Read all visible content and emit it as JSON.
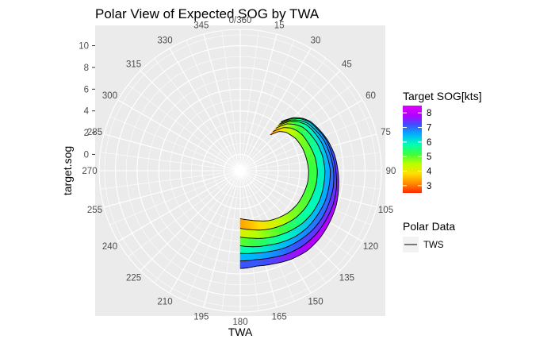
{
  "chart_data": {
    "type": "polar-area",
    "title": "Polar View of Expected SOG by TWA",
    "xlabel": "TWA",
    "ylabel": "target.sog",
    "theta_ticks": [
      "0/360",
      "15",
      "30",
      "45",
      "60",
      "75",
      "90",
      "105",
      "120",
      "135",
      "150",
      "165",
      "180",
      "195",
      "210",
      "225",
      "240",
      "255",
      "270",
      "285",
      "300",
      "315",
      "330",
      "345"
    ],
    "theta_range": [
      0,
      360
    ],
    "r_ticks": [
      "0",
      "2",
      "4",
      "6",
      "8",
      "10"
    ],
    "r_range": [
      -1.5,
      11.5
    ],
    "grid": true,
    "panel_background": "#ebebeb",
    "color_scale": {
      "title": "Target SOG[kts]",
      "ticks": [
        "3",
        "4",
        "5",
        "6",
        "7",
        "8"
      ],
      "range": [
        2.5,
        8.5
      ],
      "colors": [
        "#ff2a00",
        "#ff8c00",
        "#ffe000",
        "#b8ff00",
        "#3cff3c",
        "#00ffb4",
        "#00b4ff",
        "#3c50ff",
        "#b400ff",
        "#e000ff"
      ]
    },
    "line_legend": {
      "title": "Polar Data",
      "entries": [
        "TWS"
      ],
      "color": "#000000"
    },
    "twa": [
      40,
      45,
      50,
      55,
      60,
      70,
      80,
      90,
      100,
      110,
      120,
      130,
      140,
      150,
      160,
      170,
      180
    ],
    "series": [
      {
        "values": [
          2.8,
          3.6,
          4.0,
          4.2,
          4.4,
          4.6,
          4.7,
          4.8,
          4.8,
          4.7,
          4.6,
          4.4,
          4.1,
          3.8,
          3.4,
          3.1,
          2.9
        ]
      },
      {
        "values": [
          3.2,
          4.1,
          4.6,
          4.9,
          5.1,
          5.3,
          5.5,
          5.6,
          5.6,
          5.5,
          5.4,
          5.2,
          4.9,
          4.6,
          4.3,
          4.0,
          3.8
        ]
      },
      {
        "values": [
          3.6,
          4.6,
          5.1,
          5.5,
          5.7,
          6.0,
          6.2,
          6.3,
          6.3,
          6.3,
          6.2,
          6.0,
          5.7,
          5.4,
          5.1,
          4.8,
          4.6
        ]
      },
      {
        "values": [
          3.9,
          4.9,
          5.5,
          5.9,
          6.1,
          6.4,
          6.6,
          6.8,
          6.8,
          6.8,
          6.7,
          6.6,
          6.4,
          6.1,
          5.8,
          5.6,
          5.4
        ]
      },
      {
        "values": [
          4.1,
          5.1,
          5.7,
          6.1,
          6.3,
          6.7,
          6.9,
          7.1,
          7.2,
          7.2,
          7.2,
          7.1,
          6.9,
          6.7,
          6.4,
          6.2,
          6.1
        ]
      },
      {
        "values": [
          4.3,
          5.3,
          5.9,
          6.3,
          6.5,
          6.9,
          7.1,
          7.3,
          7.5,
          7.6,
          7.6,
          7.6,
          7.5,
          7.3,
          7.0,
          6.8,
          6.8
        ]
      },
      {
        "values": [
          4.4,
          5.4,
          6.0,
          6.4,
          6.6,
          7.0,
          7.3,
          7.5,
          7.7,
          7.9,
          8.0,
          8.1,
          8.1,
          7.9,
          7.6,
          7.4,
          7.5
        ]
      }
    ]
  }
}
